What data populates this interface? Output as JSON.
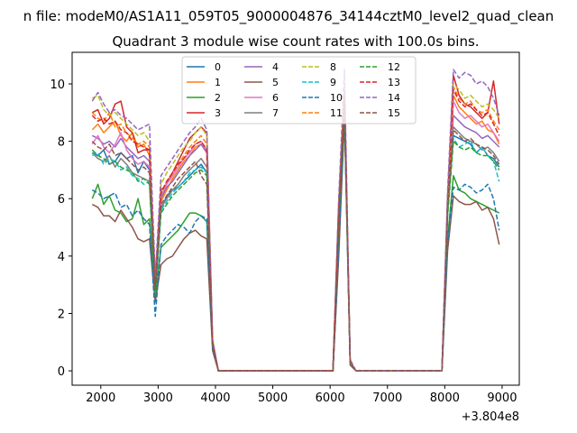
{
  "figure": {
    "suptitle": "n file: modeM0/AS1A11_059T05_9000004876_34144cztM0_level2_quad_clean",
    "title": "Quadrant 3 module wise count rates with 100.0s bins."
  },
  "chart_data": {
    "type": "line",
    "x_offset_label": "+3.804e8",
    "xlim": [
      1500,
      9300
    ],
    "ylim": [
      -0.5,
      11.1
    ],
    "x_ticks": [
      2000,
      3000,
      4000,
      5000,
      6000,
      7000,
      8000,
      9000
    ],
    "x_tick_labels": [
      "2000",
      "3000",
      "4000",
      "5000",
      "6000",
      "7000",
      "8000",
      "9000"
    ],
    "y_ticks": [
      0,
      2,
      4,
      6,
      8,
      10
    ],
    "y_tick_labels": [
      "0",
      "2",
      "4",
      "6",
      "8",
      "10"
    ],
    "legend_position": "upper-center",
    "legend_columns": 4,
    "x": [
      1850,
      1950,
      2050,
      2150,
      2250,
      2350,
      2450,
      2550,
      2650,
      2750,
      2850,
      2950,
      3050,
      3150,
      3250,
      3350,
      3450,
      3550,
      3650,
      3750,
      3850,
      3950,
      4050,
      4150,
      4250,
      4350,
      4450,
      4550,
      4650,
      4750,
      4850,
      4950,
      5050,
      5150,
      5250,
      5350,
      5450,
      5550,
      5650,
      5750,
      5850,
      5950,
      6050,
      6150,
      6250,
      6350,
      6450,
      6550,
      6650,
      6750,
      6850,
      6950,
      7050,
      7150,
      7250,
      7350,
      7450,
      7550,
      7650,
      7750,
      7850,
      7950,
      8050,
      8150,
      8250,
      8350,
      8450,
      8550,
      8650,
      8750,
      8850,
      8950
    ],
    "series": [
      {
        "name": "0",
        "color": "#1f77b4",
        "dashed": false,
        "values": [
          7.6,
          7.5,
          7.7,
          7.2,
          7.3,
          7.6,
          7.4,
          7.5,
          6.9,
          7.3,
          7.0,
          2.8,
          5.6,
          6.1,
          6.3,
          6.4,
          6.6,
          6.8,
          7.0,
          7.2,
          6.9,
          0.9,
          0,
          0,
          0,
          0,
          0,
          0,
          0,
          0,
          0,
          0,
          0,
          0,
          0,
          0,
          0,
          0,
          0,
          0,
          0,
          0,
          0,
          5.3,
          9.4,
          0.3,
          0,
          0,
          0,
          0,
          0,
          0,
          0,
          0,
          0,
          0,
          0,
          0,
          0,
          0,
          0,
          0,
          5.6,
          8.2,
          8.1,
          8.0,
          7.9,
          7.6,
          7.8,
          7.5,
          7.4,
          7.1
        ]
      },
      {
        "name": "1",
        "color": "#ff7f0e",
        "dashed": false,
        "values": [
          8.4,
          8.6,
          8.3,
          8.5,
          8.7,
          8.2,
          8.0,
          8.3,
          7.8,
          7.9,
          7.5,
          2.9,
          5.9,
          6.3,
          6.7,
          7.0,
          7.3,
          7.5,
          7.8,
          7.9,
          7.6,
          1.0,
          0,
          0,
          0,
          0,
          0,
          0,
          0,
          0,
          0,
          0,
          0,
          0,
          0,
          0,
          0,
          0,
          0,
          0,
          0,
          0,
          0,
          5.6,
          9.6,
          0.3,
          0,
          0,
          0,
          0,
          0,
          0,
          0,
          0,
          0,
          0,
          0,
          0,
          0,
          0,
          0,
          0,
          5.9,
          9.6,
          9.2,
          9.0,
          8.8,
          8.6,
          8.7,
          8.4,
          8.3,
          7.9
        ]
      },
      {
        "name": "2",
        "color": "#2ca02c",
        "dashed": false,
        "values": [
          6.0,
          6.5,
          5.8,
          6.1,
          5.6,
          5.5,
          5.2,
          5.3,
          6.0,
          5.1,
          5.3,
          2.6,
          4.3,
          4.5,
          4.7,
          4.9,
          5.2,
          5.5,
          5.5,
          5.4,
          5.2,
          0.8,
          0,
          0,
          0,
          0,
          0,
          0,
          0,
          0,
          0,
          0,
          0,
          0,
          0,
          0,
          0,
          0,
          0,
          0,
          0,
          0,
          0,
          4.2,
          9.0,
          0.3,
          0,
          0,
          0,
          0,
          0,
          0,
          0,
          0,
          0,
          0,
          0,
          0,
          0,
          0,
          0,
          0,
          4.6,
          6.8,
          6.3,
          6.2,
          6.0,
          5.9,
          5.8,
          5.7,
          5.6,
          5.5
        ]
      },
      {
        "name": "3",
        "color": "#d62728",
        "dashed": false,
        "values": [
          9.0,
          9.1,
          8.6,
          8.8,
          9.3,
          9.4,
          8.5,
          8.3,
          7.6,
          7.7,
          7.7,
          3.0,
          6.3,
          6.5,
          6.9,
          7.3,
          7.7,
          8.1,
          8.3,
          8.5,
          8.3,
          1.0,
          0,
          0,
          0,
          0,
          0,
          0,
          0,
          0,
          0,
          0,
          0,
          0,
          0,
          0,
          0,
          0,
          0,
          0,
          0,
          0,
          0,
          5.8,
          9.8,
          0.3,
          0,
          0,
          0,
          0,
          0,
          0,
          0,
          0,
          0,
          0,
          0,
          0,
          0,
          0,
          0,
          0,
          6.0,
          10.3,
          9.6,
          9.3,
          9.2,
          9.0,
          8.8,
          9.0,
          10.1,
          8.6
        ]
      },
      {
        "name": "4",
        "color": "#9467bd",
        "dashed": false,
        "values": [
          8.2,
          8.1,
          7.9,
          8.0,
          7.8,
          8.1,
          7.8,
          7.6,
          7.4,
          7.5,
          7.3,
          2.8,
          6.0,
          6.4,
          6.6,
          6.9,
          7.2,
          7.5,
          7.7,
          7.9,
          7.6,
          1.0,
          0,
          0,
          0,
          0,
          0,
          0,
          0,
          0,
          0,
          0,
          0,
          0,
          0,
          0,
          0,
          0,
          0,
          0,
          0,
          0,
          0,
          5.5,
          9.5,
          0.3,
          0,
          0,
          0,
          0,
          0,
          0,
          0,
          0,
          0,
          0,
          0,
          0,
          0,
          0,
          0,
          0,
          5.8,
          8.9,
          8.7,
          8.5,
          8.4,
          8.3,
          8.1,
          8.2,
          8.0,
          7.8
        ]
      },
      {
        "name": "5",
        "color": "#8c564b",
        "dashed": false,
        "values": [
          5.8,
          5.7,
          5.4,
          5.4,
          5.2,
          5.6,
          5.3,
          5.0,
          4.6,
          4.5,
          4.6,
          2.4,
          3.7,
          3.9,
          4.0,
          4.3,
          4.6,
          4.8,
          4.9,
          4.7,
          4.6,
          0.7,
          0,
          0,
          0,
          0,
          0,
          0,
          0,
          0,
          0,
          0,
          0,
          0,
          0,
          0,
          0,
          0,
          0,
          0,
          0,
          0,
          0,
          4.0,
          8.8,
          0.2,
          0,
          0,
          0,
          0,
          0,
          0,
          0,
          0,
          0,
          0,
          0,
          0,
          0,
          0,
          0,
          0,
          4.2,
          6.1,
          5.9,
          5.8,
          5.8,
          5.9,
          5.6,
          5.7,
          5.3,
          4.4
        ]
      },
      {
        "name": "6",
        "color": "#e377c2",
        "dashed": false,
        "values": [
          7.9,
          8.2,
          7.8,
          7.6,
          7.9,
          8.3,
          7.7,
          7.4,
          7.2,
          7.3,
          7.1,
          3.1,
          6.1,
          6.5,
          6.8,
          7.1,
          7.4,
          7.6,
          7.9,
          8.0,
          7.7,
          1.0,
          0,
          0,
          0,
          0,
          0,
          0,
          0,
          0,
          0,
          0,
          0,
          0,
          0,
          0,
          0,
          0,
          0,
          0,
          0,
          0,
          0,
          5.5,
          9.5,
          0.3,
          0,
          0,
          0,
          0,
          0,
          0,
          0,
          0,
          0,
          0,
          0,
          0,
          0,
          0,
          0,
          0,
          5.8,
          9.4,
          9.0,
          8.8,
          8.9,
          8.7,
          8.5,
          8.6,
          8.3,
          8.0
        ]
      },
      {
        "name": "7",
        "color": "#7f7f7f",
        "dashed": false,
        "values": [
          7.6,
          7.4,
          7.3,
          7.5,
          7.1,
          7.4,
          7.2,
          6.9,
          6.8,
          6.7,
          6.6,
          2.7,
          5.7,
          6.0,
          6.3,
          6.5,
          6.8,
          7.0,
          7.2,
          7.4,
          7.1,
          0.9,
          0,
          0,
          0,
          0,
          0,
          0,
          0,
          0,
          0,
          0,
          0,
          0,
          0,
          0,
          0,
          0,
          0,
          0,
          0,
          0,
          0,
          5.3,
          9.3,
          0.3,
          0,
          0,
          0,
          0,
          0,
          0,
          0,
          0,
          0,
          0,
          0,
          0,
          0,
          0,
          0,
          0,
          5.6,
          8.5,
          8.3,
          8.1,
          8.0,
          7.9,
          7.7,
          7.8,
          7.6,
          7.3
        ]
      },
      {
        "name": "8",
        "color": "#bcbd22",
        "dashed": true,
        "values": [
          9.5,
          9.6,
          9.1,
          8.9,
          9.0,
          8.8,
          8.6,
          8.4,
          8.2,
          8.3,
          8.0,
          3.2,
          6.5,
          6.9,
          7.2,
          7.5,
          7.8,
          8.0,
          8.3,
          8.5,
          8.2,
          1.1,
          0,
          0,
          0,
          0,
          0,
          0,
          0,
          0,
          0,
          0,
          0,
          0,
          0,
          0,
          0,
          0,
          0,
          0,
          0,
          0,
          0,
          5.9,
          9.9,
          0.3,
          0,
          0,
          0,
          0,
          0,
          0,
          0,
          0,
          0,
          0,
          0,
          0,
          0,
          0,
          0,
          0,
          6.1,
          10.0,
          9.8,
          9.5,
          9.6,
          9.4,
          9.2,
          9.3,
          9.1,
          8.8
        ]
      },
      {
        "name": "9",
        "color": "#17becf",
        "dashed": true,
        "values": [
          7.5,
          7.6,
          7.2,
          7.4,
          7.3,
          7.0,
          7.1,
          6.8,
          6.7,
          6.5,
          6.6,
          2.7,
          5.6,
          5.9,
          6.2,
          6.4,
          6.6,
          6.9,
          7.0,
          7.1,
          6.9,
          0.9,
          0,
          0,
          0,
          0,
          0,
          0,
          0,
          0,
          0,
          0,
          0,
          0,
          0,
          0,
          0,
          0,
          0,
          0,
          0,
          0,
          0,
          5.2,
          9.2,
          0.3,
          0,
          0,
          0,
          0,
          0,
          0,
          0,
          0,
          0,
          0,
          0,
          0,
          0,
          0,
          0,
          0,
          5.5,
          8.1,
          7.8,
          7.9,
          8.0,
          7.6,
          7.8,
          7.5,
          7.3,
          6.6
        ]
      },
      {
        "name": "10",
        "color": "#1f77b4",
        "dashed": true,
        "values": [
          6.3,
          6.2,
          6.0,
          6.1,
          6.2,
          5.7,
          5.8,
          5.4,
          5.6,
          5.3,
          5.1,
          1.9,
          4.4,
          4.7,
          4.9,
          5.1,
          5.0,
          4.8,
          5.2,
          5.4,
          5.3,
          0.8,
          0,
          0,
          0,
          0,
          0,
          0,
          0,
          0,
          0,
          0,
          0,
          0,
          0,
          0,
          0,
          0,
          0,
          0,
          0,
          0,
          0,
          4.3,
          8.9,
          0.3,
          0,
          0,
          0,
          0,
          0,
          0,
          0,
          0,
          0,
          0,
          0,
          0,
          0,
          0,
          0,
          0,
          4.5,
          6.4,
          6.3,
          6.5,
          6.4,
          6.2,
          6.3,
          6.5,
          6.0,
          4.9
        ]
      },
      {
        "name": "11",
        "color": "#ff7f0e",
        "dashed": true,
        "values": [
          9.0,
          8.8,
          8.7,
          9.0,
          8.5,
          8.6,
          8.3,
          8.1,
          7.9,
          8.0,
          7.8,
          3.0,
          6.2,
          6.6,
          6.9,
          7.2,
          7.5,
          7.8,
          8.0,
          8.2,
          7.9,
          1.0,
          0,
          0,
          0,
          0,
          0,
          0,
          0,
          0,
          0,
          0,
          0,
          0,
          0,
          0,
          0,
          0,
          0,
          0,
          0,
          0,
          0,
          5.7,
          9.7,
          0.3,
          0,
          0,
          0,
          0,
          0,
          0,
          0,
          0,
          0,
          0,
          0,
          0,
          0,
          0,
          0,
          0,
          5.9,
          9.9,
          9.5,
          9.3,
          9.4,
          9.1,
          9.0,
          9.1,
          8.7,
          8.4
        ]
      },
      {
        "name": "12",
        "color": "#2ca02c",
        "dashed": true,
        "values": [
          7.7,
          7.5,
          7.4,
          7.2,
          7.3,
          7.1,
          7.0,
          6.9,
          6.6,
          6.7,
          6.5,
          2.6,
          5.5,
          5.8,
          6.1,
          6.3,
          6.5,
          6.7,
          6.9,
          7.0,
          6.8,
          0.9,
          0,
          0,
          0,
          0,
          0,
          0,
          0,
          0,
          0,
          0,
          0,
          0,
          0,
          0,
          0,
          0,
          0,
          0,
          0,
          0,
          0,
          5.2,
          9.1,
          0.3,
          0,
          0,
          0,
          0,
          0,
          0,
          0,
          0,
          0,
          0,
          0,
          0,
          0,
          0,
          0,
          0,
          5.4,
          8.0,
          7.8,
          7.7,
          7.8,
          7.6,
          7.5,
          7.5,
          7.3,
          7.0
        ]
      },
      {
        "name": "13",
        "color": "#d62728",
        "dashed": true,
        "values": [
          8.9,
          8.7,
          8.8,
          8.6,
          8.7,
          8.4,
          8.3,
          8.0,
          7.9,
          7.8,
          7.7,
          3.0,
          6.2,
          6.6,
          6.9,
          7.2,
          7.4,
          7.7,
          7.9,
          8.0,
          7.7,
          1.0,
          0,
          0,
          0,
          0,
          0,
          0,
          0,
          0,
          0,
          0,
          0,
          0,
          0,
          0,
          0,
          0,
          0,
          0,
          0,
          0,
          0,
          5.6,
          9.6,
          0.3,
          0,
          0,
          0,
          0,
          0,
          0,
          0,
          0,
          0,
          0,
          0,
          0,
          0,
          0,
          0,
          0,
          5.9,
          9.8,
          9.4,
          9.2,
          9.3,
          9.1,
          8.9,
          9.0,
          8.6,
          8.2
        ]
      },
      {
        "name": "14",
        "color": "#9467bd",
        "dashed": true,
        "values": [
          9.4,
          9.7,
          9.3,
          9.0,
          9.1,
          8.9,
          8.8,
          8.6,
          8.4,
          8.5,
          8.6,
          3.3,
          6.8,
          7.1,
          7.4,
          7.7,
          8.0,
          8.3,
          8.5,
          8.8,
          8.4,
          1.1,
          0,
          0,
          0,
          0,
          0,
          0,
          0,
          0,
          0,
          0,
          0,
          0,
          0,
          0,
          0,
          0,
          0,
          0,
          0,
          0,
          0,
          6.0,
          10.5,
          0.4,
          0,
          0,
          0,
          0,
          0,
          0,
          0,
          0,
          0,
          0,
          0,
          0,
          0,
          0,
          0,
          0,
          6.3,
          10.5,
          10.2,
          10.4,
          10.3,
          10.0,
          10.1,
          9.9,
          9.5,
          8.9
        ]
      },
      {
        "name": "15",
        "color": "#8c564b",
        "dashed": true,
        "values": [
          8.0,
          7.8,
          7.7,
          7.9,
          7.5,
          7.6,
          7.4,
          7.2,
          7.0,
          7.1,
          6.9,
          2.8,
          5.8,
          6.1,
          6.4,
          6.7,
          6.9,
          7.1,
          7.3,
          6.8,
          6.5,
          0.9,
          0,
          0,
          0,
          0,
          0,
          0,
          0,
          0,
          0,
          0,
          0,
          0,
          0,
          0,
          0,
          0,
          0,
          0,
          0,
          0,
          0,
          5.4,
          9.3,
          0.3,
          0,
          0,
          0,
          0,
          0,
          0,
          0,
          0,
          0,
          0,
          0,
          0,
          0,
          0,
          0,
          0,
          5.7,
          8.4,
          8.2,
          8.0,
          8.1,
          7.9,
          7.8,
          7.7,
          7.5,
          7.2
        ]
      }
    ]
  }
}
